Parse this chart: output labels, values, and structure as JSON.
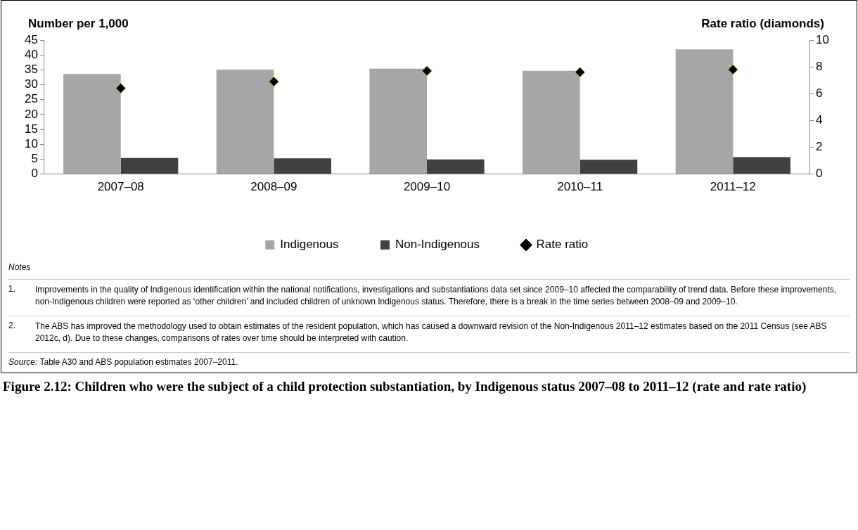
{
  "chart_data": {
    "type": "bar",
    "title": "Figure 2.12: Children who were the subject of a child protection substantiation, by Indigenous status 2007–08 to 2011–12 (rate and rate ratio)",
    "ylabel": "Number per 1,000",
    "y2label": "Rate ratio (diamonds)",
    "categories": [
      "2007–08",
      "2008–09",
      "2009–10",
      "2010–11",
      "2011–12"
    ],
    "series": [
      {
        "name": "Indigenous",
        "color": "#a6a6a6",
        "values": [
          33.6,
          35.1,
          35.4,
          34.7,
          41.9
        ]
      },
      {
        "name": "Non-Indigenous",
        "color": "#404040",
        "values": [
          5.4,
          5.3,
          4.9,
          4.8,
          5.7
        ]
      },
      {
        "name": "Rate ratio",
        "type": "scatter",
        "axis": "y2",
        "color": "#000000",
        "marker": "diamond",
        "values": [
          6.4,
          6.9,
          7.7,
          7.6,
          7.8
        ]
      }
    ],
    "ylim": [
      0,
      45
    ],
    "yticks": [
      0,
      5,
      10,
      15,
      20,
      25,
      30,
      35,
      40,
      45
    ],
    "y2lim": [
      0,
      10
    ],
    "y2ticks": [
      0,
      2,
      4,
      6,
      8,
      10
    ],
    "grid": false,
    "legend": "bottom",
    "annotations": [
      "Notes",
      "1. Improvements in the quality of Indigenous identification within the national notifications, investigations and substantiations data set since 2009–10 affected the comparability of trend data. Before these improvements, non-Indigenous children were reported as ‘other children’ and included children of unknown Indigenous status. Therefore, there is a break in the time series between 2008–09 and 2009–10.",
      "2. The ABS has improved the methodology used to obtain estimates of the resident population, which has caused a downward revision of the Non-Indigenous 2011–12 estimates based on the 2011 Census (see ABS 2012c, d). Due to these changes, comparisons of rates over time should be interpreted with caution.",
      "Source: Table A30 and ABS population estimates 2007–2011."
    ]
  }
}
